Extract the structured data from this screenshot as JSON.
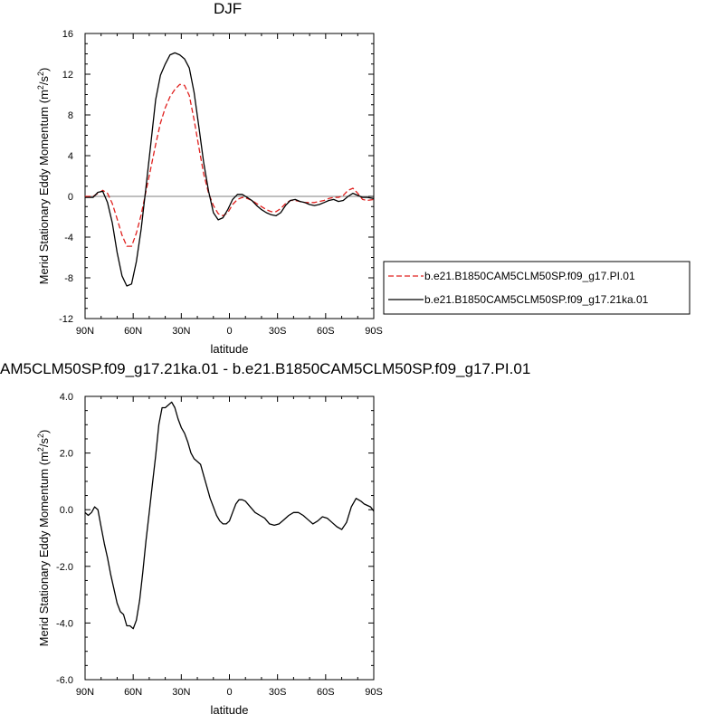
{
  "chart_data": [
    {
      "type": "line",
      "title": "DJF",
      "xlabel": "latitude",
      "ylabel": "Merid Stationary Eddy Momentum (m²/s²)",
      "ylabel_main": "Merid Stationary Eddy Momentum (m",
      "ylabel_unit_mid": "/s",
      "ylabel_close": ")",
      "ylabel_sup": "2",
      "xlim": [
        -90,
        90
      ],
      "ylim": [
        -12,
        16
      ],
      "xticks": [
        -90,
        -60,
        -30,
        0,
        30,
        60,
        90
      ],
      "xtick_labels": [
        "90N",
        "60N",
        "30N",
        "0",
        "30S",
        "60S",
        "90S"
      ],
      "yticks": [
        -12,
        -8,
        -4,
        0,
        4,
        8,
        12,
        16
      ],
      "ytick_labels": [
        "-12",
        "-8",
        "-4",
        "0",
        "4",
        "8",
        "12",
        "16"
      ],
      "grid": false,
      "legend_position": "right",
      "series": [
        {
          "name": "b.e21.B1850CAM5CLM50SP.f09_g17.PI.01",
          "color": "#e0201e",
          "dash": true,
          "x": [
            -90,
            -85,
            -82,
            -79,
            -76,
            -73,
            -70,
            -67,
            -64,
            -61,
            -58,
            -55,
            -52,
            -49,
            -46,
            -43,
            -40,
            -37,
            -34,
            -31,
            -28,
            -25,
            -22,
            -19,
            -16,
            -13,
            -10,
            -7,
            -4,
            -1,
            2,
            5,
            8,
            11,
            14,
            17,
            20,
            23,
            26,
            29,
            32,
            35,
            38,
            41,
            44,
            47,
            50,
            53,
            56,
            59,
            62,
            65,
            68,
            71,
            74,
            77,
            80,
            83,
            86,
            90
          ],
          "y": [
            0,
            0,
            0.3,
            0.6,
            0.3,
            -0.7,
            -2.2,
            -3.8,
            -4.9,
            -4.9,
            -3.6,
            -1.8,
            0.5,
            2.8,
            5.1,
            7.2,
            8.7,
            9.8,
            10.5,
            11.0,
            10.9,
            9.9,
            7.5,
            4.8,
            2.2,
            0.3,
            -0.9,
            -1.7,
            -1.9,
            -1.6,
            -0.8,
            -0.3,
            -0.1,
            -0.2,
            -0.4,
            -0.7,
            -1.0,
            -1.3,
            -1.5,
            -1.5,
            -1.2,
            -0.7,
            -0.4,
            -0.4,
            -0.5,
            -0.6,
            -0.6,
            -0.6,
            -0.5,
            -0.4,
            -0.2,
            -0.1,
            -0.1,
            0.1,
            0.6,
            0.8,
            0.3,
            -0.3,
            -0.4,
            -0.3
          ]
        },
        {
          "name": "b.e21.B1850CAM5CLM50SP.f09_g17.21ka.01",
          "color": "#000000",
          "dash": false,
          "x": [
            -90,
            -85,
            -82,
            -79,
            -76,
            -73,
            -70,
            -67,
            -64,
            -61,
            -58,
            -55,
            -52,
            -49,
            -46,
            -43,
            -40,
            -37,
            -34,
            -31,
            -28,
            -25,
            -22,
            -19,
            -16,
            -13,
            -10,
            -7,
            -4,
            -1,
            2,
            5,
            8,
            11,
            14,
            17,
            20,
            23,
            26,
            29,
            32,
            35,
            38,
            41,
            44,
            47,
            50,
            53,
            56,
            59,
            62,
            65,
            68,
            71,
            74,
            77,
            80,
            83,
            86,
            90
          ],
          "y": [
            -0.1,
            -0.1,
            0.4,
            0.5,
            -0.6,
            -2.6,
            -5.5,
            -7.8,
            -8.8,
            -8.6,
            -6.4,
            -3.2,
            0.9,
            5.2,
            9.5,
            11.9,
            13.0,
            13.9,
            14.1,
            13.9,
            13.5,
            12.6,
            10.2,
            6.8,
            3.3,
            0.5,
            -1.6,
            -2.3,
            -2.1,
            -1.3,
            -0.3,
            0.2,
            0.2,
            -0.1,
            -0.4,
            -0.9,
            -1.3,
            -1.6,
            -1.8,
            -1.9,
            -1.6,
            -0.9,
            -0.4,
            -0.3,
            -0.5,
            -0.6,
            -0.8,
            -0.9,
            -0.8,
            -0.6,
            -0.4,
            -0.3,
            -0.5,
            -0.4,
            0.0,
            0.3,
            0.1,
            -0.1,
            -0.1,
            -0.2
          ]
        }
      ]
    },
    {
      "type": "line",
      "title": "AM5CLM50SP.f09_g17.21ka.01 - b.e21.B1850CAM5CLM50SP.f09_g17.PI.01",
      "xlabel": "latitude",
      "ylabel": "Merid Stationary Eddy Momentum (m²/s²)",
      "ylabel_main": "Merid Stationary Eddy Momentum (m",
      "ylabel_unit_mid": "/s",
      "ylabel_close": ")",
      "ylabel_sup": "2",
      "xlim": [
        -90,
        90
      ],
      "ylim": [
        -6,
        4
      ],
      "xticks": [
        -90,
        -60,
        -30,
        0,
        30,
        60,
        90
      ],
      "xtick_labels": [
        "90N",
        "60N",
        "30N",
        "0",
        "30S",
        "60S",
        "90S"
      ],
      "yticks": [
        -6,
        -4,
        -2,
        0,
        2,
        4
      ],
      "ytick_labels": [
        "-6.0",
        "-4.0",
        "-2.0",
        "0.0",
        "2.0",
        "4.0"
      ],
      "grid": false,
      "series": [
        {
          "name": "",
          "color": "#000000",
          "dash": false,
          "x": [
            -90,
            -88,
            -86,
            -84,
            -82,
            -80,
            -78,
            -76,
            -74,
            -72,
            -70,
            -68,
            -66,
            -64,
            -62,
            -60,
            -58,
            -56,
            -54,
            -52,
            -50,
            -48,
            -46,
            -44,
            -42,
            -40,
            -38,
            -36,
            -34,
            -32,
            -30,
            -28,
            -26,
            -24,
            -22,
            -20,
            -18,
            -16,
            -14,
            -12,
            -10,
            -8,
            -6,
            -4,
            -2,
            0,
            2,
            4,
            6,
            8,
            10,
            13,
            16,
            19,
            22,
            25,
            28,
            31,
            34,
            37,
            40,
            43,
            46,
            49,
            52,
            55,
            58,
            61,
            64,
            67,
            70,
            73,
            76,
            79,
            82,
            84,
            86,
            88,
            90
          ],
          "y": [
            -0.1,
            -0.2,
            -0.1,
            0.1,
            0.0,
            -0.6,
            -1.2,
            -1.7,
            -2.3,
            -2.8,
            -3.3,
            -3.6,
            -3.7,
            -4.1,
            -4.1,
            -4.2,
            -3.9,
            -3.2,
            -2.2,
            -1.1,
            -0.1,
            0.9,
            1.9,
            3.0,
            3.6,
            3.6,
            3.7,
            3.8,
            3.6,
            3.2,
            2.9,
            2.7,
            2.4,
            2.0,
            1.8,
            1.7,
            1.6,
            1.2,
            0.8,
            0.4,
            0.1,
            -0.2,
            -0.4,
            -0.5,
            -0.5,
            -0.4,
            -0.1,
            0.2,
            0.35,
            0.35,
            0.3,
            0.1,
            -0.1,
            -0.2,
            -0.3,
            -0.5,
            -0.55,
            -0.5,
            -0.35,
            -0.2,
            -0.1,
            -0.1,
            -0.2,
            -0.35,
            -0.5,
            -0.4,
            -0.25,
            -0.3,
            -0.45,
            -0.6,
            -0.7,
            -0.45,
            0.1,
            0.4,
            0.3,
            0.2,
            0.15,
            0.1,
            -0.05
          ]
        }
      ]
    }
  ]
}
